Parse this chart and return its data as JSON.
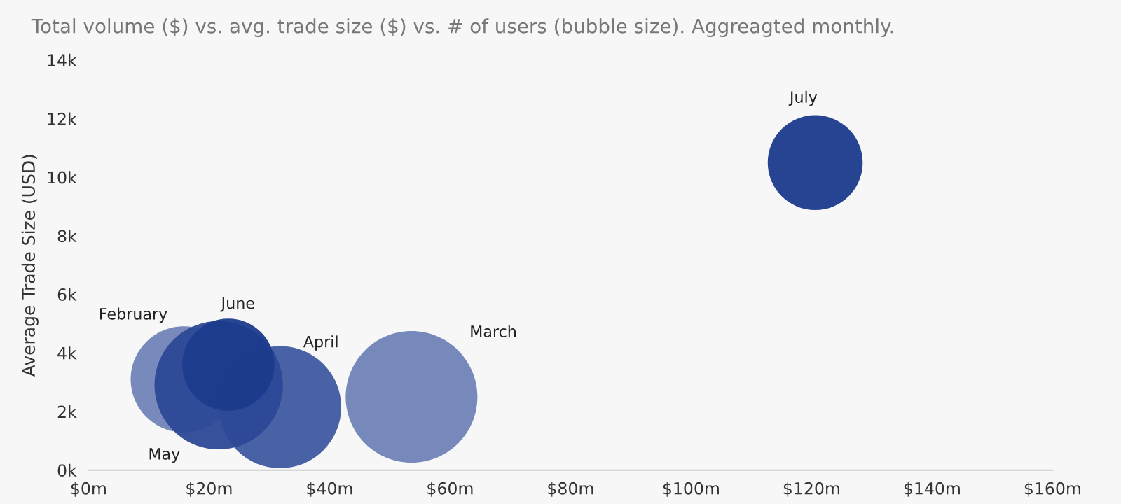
{
  "chart_data": {
    "type": "bubble",
    "title": "Total volume ($) vs. avg. trade size ($) vs. # of users (bubble size). Aggreagted monthly.",
    "ylabel": "Average Trade Size (USD)",
    "series": [
      {
        "x": [
          15.8,
          31.8,
          21.6,
          23.2,
          53.6,
          120.6
        ],
        "values": [
          3100,
          2150,
          2900,
          3600,
          2500,
          10500
        ],
        "sizes": [
          0.65,
          0.86,
          0.95,
          0.49,
          1,
          0.52
        ],
        "colors": [
          "#7183b8",
          "#3f59a0",
          "#2c4896",
          "#1c3b8c",
          "#6f83b6",
          "#1a3a8b"
        ]
      }
    ],
    "annotations": [
      "February",
      "April",
      "May",
      "June",
      "March",
      "July"
    ],
    "xlim": [
      0,
      160
    ],
    "xticks": [
      {
        "value": 0,
        "label": "$0m"
      },
      {
        "value": 20,
        "label": "$20m"
      },
      {
        "value": 40,
        "label": "$40m"
      },
      {
        "value": 60,
        "label": "$60m"
      },
      {
        "value": 80,
        "label": "$80m"
      },
      {
        "value": 100,
        "label": "$100m"
      },
      {
        "value": 120,
        "label": "$120m"
      },
      {
        "value": 140,
        "label": "$140m"
      },
      {
        "value": 160,
        "label": "$160m"
      }
    ],
    "ylim": [
      0,
      14000
    ],
    "yticks": [
      {
        "value": 0,
        "label": "0k"
      },
      {
        "value": 2000,
        "label": "2k"
      },
      {
        "value": 4000,
        "label": "4k"
      },
      {
        "value": 6000,
        "label": "6k"
      },
      {
        "value": 8000,
        "label": "8k"
      },
      {
        "value": 10000,
        "label": "10k"
      },
      {
        "value": 12000,
        "label": "12k"
      },
      {
        "value": 14000,
        "label": "14k"
      }
    ],
    "grid": false,
    "legend": false
  }
}
